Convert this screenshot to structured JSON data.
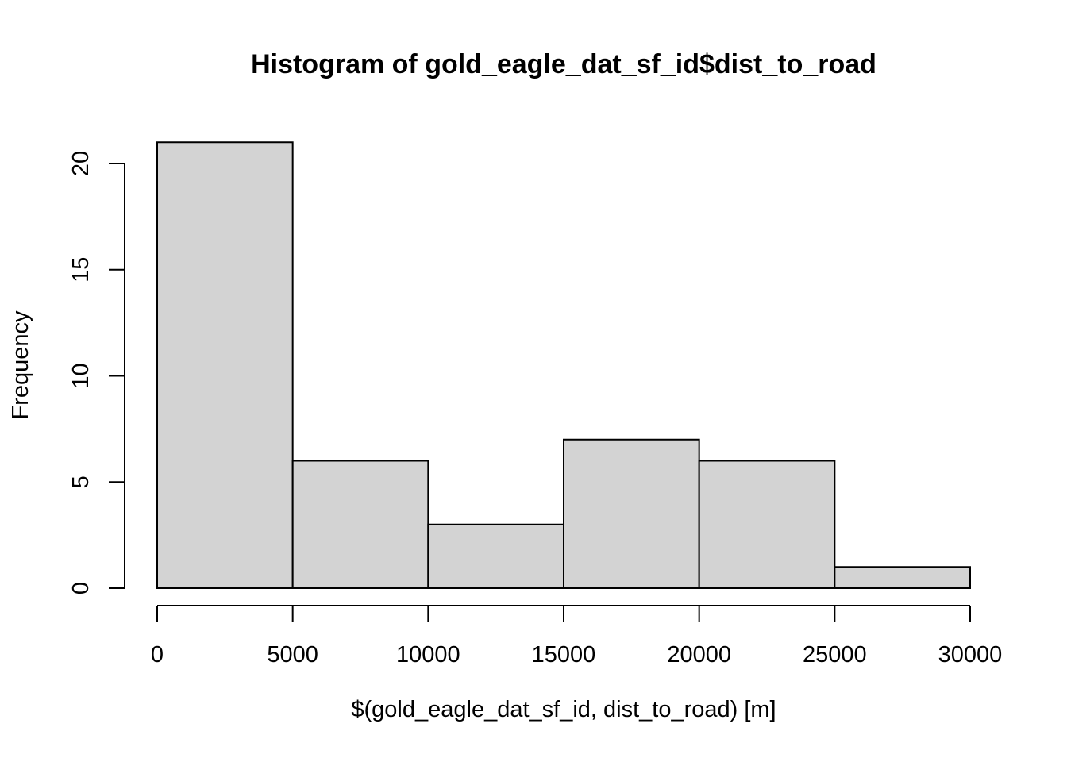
{
  "chart_data": {
    "type": "bar",
    "title": "Histogram of gold_eagle_dat_sf_id$dist_to_road",
    "xlabel": "$(gold_eagle_dat_sf_id, dist_to_road) [m]",
    "ylabel": "Frequency",
    "bins": [
      {
        "start": 0,
        "end": 5000,
        "count": 21
      },
      {
        "start": 5000,
        "end": 10000,
        "count": 6
      },
      {
        "start": 10000,
        "end": 15000,
        "count": 3
      },
      {
        "start": 15000,
        "end": 20000,
        "count": 7
      },
      {
        "start": 20000,
        "end": 25000,
        "count": 6
      },
      {
        "start": 25000,
        "end": 30000,
        "count": 1
      }
    ],
    "xlim": [
      0,
      30000
    ],
    "ylim": [
      0,
      21
    ],
    "x_ticks": [
      "0",
      "5000",
      "10000",
      "15000",
      "20000",
      "25000",
      "30000"
    ],
    "y_ticks": [
      "0",
      "5",
      "10",
      "15",
      "20"
    ],
    "bar_color": "#d3d3d3",
    "grid": false,
    "legend": "none"
  }
}
